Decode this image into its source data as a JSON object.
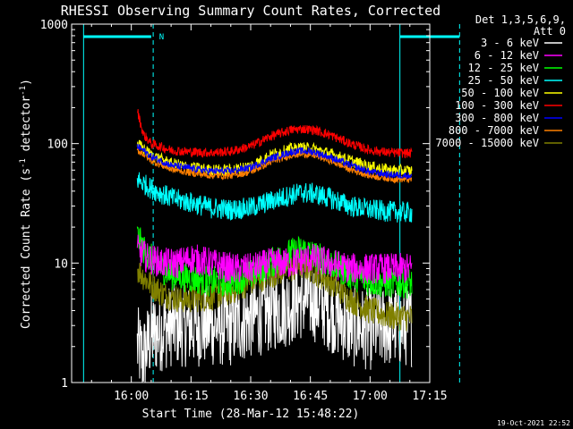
{
  "chart_data": {
    "type": "line",
    "title": "RHESSI Observing Summary Count Rates, Corrected",
    "xlabel": "Start Time (28-Mar-12 15:48:22)",
    "ylabel_main": "Corrected Count Rate (s",
    "ylabel_sup1": "-1",
    "ylabel_mid": " detector",
    "ylabel_sup2": "-1",
    "ylabel_end": ")",
    "yscale": "log",
    "ylim": [
      1,
      1000
    ],
    "xlim_minutes": [
      -15,
      75
    ],
    "x_origin": "16:00",
    "x_ticks": [
      {
        "minutes": 0,
        "label": "16:00"
      },
      {
        "minutes": 15,
        "label": "16:15"
      },
      {
        "minutes": 30,
        "label": "16:30"
      },
      {
        "minutes": 45,
        "label": "16:45"
      },
      {
        "minutes": 60,
        "label": "17:00"
      },
      {
        "minutes": 75,
        "label": "17:15"
      }
    ],
    "y_ticks": [
      {
        "value": 1,
        "label": "1"
      },
      {
        "value": 10,
        "label": "10"
      },
      {
        "value": 100,
        "label": "100"
      },
      {
        "value": 1000,
        "label": "1000"
      }
    ],
    "legend_header": [
      "Det 1,3,5,6,9,",
      "Att 0"
    ],
    "legend_placement": "right",
    "markers": {
      "night_solid": [
        -12,
        67.5
      ],
      "night_dashed": [
        5.5,
        82.5
      ],
      "flag_color": "#00ffff",
      "flag_solid_segments": [
        [
          -12,
          5
        ],
        [
          67.5,
          82.5
        ]
      ],
      "flag_label": "N",
      "flag_label_minutes": 7
    },
    "data_start_minutes": 1.5,
    "data_end_minutes": 70.5,
    "series": [
      {
        "name": "3 - 6 keV",
        "color": "#ffffff",
        "points": [
          [
            1.5,
            2
          ],
          [
            3,
            1.6
          ],
          [
            5,
            2.5
          ],
          [
            10,
            3
          ],
          [
            15,
            3
          ],
          [
            20,
            3
          ],
          [
            25,
            3
          ],
          [
            30,
            3.5
          ],
          [
            35,
            4
          ],
          [
            40,
            4.5
          ],
          [
            42,
            5
          ],
          [
            45,
            5
          ],
          [
            48,
            4.5
          ],
          [
            50,
            4
          ],
          [
            55,
            3
          ],
          [
            60,
            2.8
          ],
          [
            65,
            3
          ],
          [
            70,
            3
          ]
        ]
      },
      {
        "name": "6 - 12 keV",
        "color": "#ff00ff",
        "points": [
          [
            1.5,
            13
          ],
          [
            4,
            11
          ],
          [
            8,
            10
          ],
          [
            12,
            10
          ],
          [
            15,
            11
          ],
          [
            20,
            10
          ],
          [
            25,
            9
          ],
          [
            30,
            9
          ],
          [
            35,
            10
          ],
          [
            40,
            10
          ],
          [
            45,
            11
          ],
          [
            50,
            10
          ],
          [
            55,
            9
          ],
          [
            60,
            9
          ],
          [
            65,
            9
          ],
          [
            70,
            9
          ]
        ]
      },
      {
        "name": "12 - 25 keV",
        "color": "#00ff00",
        "points": [
          [
            1.5,
            17
          ],
          [
            3,
            13
          ],
          [
            6,
            10
          ],
          [
            10,
            8
          ],
          [
            15,
            7.5
          ],
          [
            20,
            7
          ],
          [
            25,
            7
          ],
          [
            30,
            8
          ],
          [
            35,
            10
          ],
          [
            40,
            12
          ],
          [
            43,
            13
          ],
          [
            45,
            12
          ],
          [
            50,
            10
          ],
          [
            55,
            8
          ],
          [
            60,
            7
          ],
          [
            65,
            6.8
          ],
          [
            70,
            6.8
          ]
        ]
      },
      {
        "name": "25 - 50 keV",
        "color": "#00ffff",
        "points": [
          [
            1.5,
            50
          ],
          [
            5,
            42
          ],
          [
            10,
            35
          ],
          [
            15,
            32
          ],
          [
            20,
            29
          ],
          [
            25,
            28
          ],
          [
            30,
            29
          ],
          [
            35,
            33
          ],
          [
            40,
            37
          ],
          [
            43,
            39
          ],
          [
            46,
            38
          ],
          [
            50,
            35
          ],
          [
            55,
            30
          ],
          [
            60,
            28
          ],
          [
            65,
            27
          ],
          [
            70,
            26.5
          ]
        ]
      },
      {
        "name": "50 - 100 keV",
        "color": "#ffff00",
        "points": [
          [
            1.5,
            100
          ],
          [
            5,
            80
          ],
          [
            10,
            68
          ],
          [
            15,
            63
          ],
          [
            20,
            60
          ],
          [
            25,
            60
          ],
          [
            30,
            65
          ],
          [
            35,
            80
          ],
          [
            40,
            90
          ],
          [
            43,
            92
          ],
          [
            46,
            90
          ],
          [
            50,
            82
          ],
          [
            55,
            72
          ],
          [
            60,
            64
          ],
          [
            65,
            60
          ],
          [
            70,
            59
          ]
        ]
      },
      {
        "name": "100 - 300 keV",
        "color": "#ff0000",
        "points": [
          [
            1.5,
            190
          ],
          [
            3,
            120
          ],
          [
            5,
            100
          ],
          [
            10,
            88
          ],
          [
            15,
            85
          ],
          [
            20,
            84
          ],
          [
            25,
            86
          ],
          [
            30,
            95
          ],
          [
            35,
            115
          ],
          [
            40,
            130
          ],
          [
            43,
            133
          ],
          [
            46,
            130
          ],
          [
            50,
            118
          ],
          [
            55,
            100
          ],
          [
            60,
            88
          ],
          [
            65,
            84
          ],
          [
            70,
            83
          ]
        ]
      },
      {
        "name": "300 - 800 keV",
        "color": "#0000ff",
        "points": [
          [
            1.5,
            95
          ],
          [
            3,
            88
          ],
          [
            5,
            78
          ],
          [
            10,
            66
          ],
          [
            15,
            62
          ],
          [
            20,
            59
          ],
          [
            25,
            59
          ],
          [
            30,
            63
          ],
          [
            35,
            75
          ],
          [
            40,
            85
          ],
          [
            43,
            87
          ],
          [
            46,
            85
          ],
          [
            50,
            77
          ],
          [
            55,
            66
          ],
          [
            60,
            58
          ],
          [
            65,
            55
          ],
          [
            70,
            54
          ]
        ]
      },
      {
        "name": "800 - 7000 keV",
        "color": "#ff8000",
        "points": [
          [
            1.5,
            88
          ],
          [
            3,
            82
          ],
          [
            5,
            72
          ],
          [
            10,
            61
          ],
          [
            15,
            57
          ],
          [
            20,
            54
          ],
          [
            25,
            54
          ],
          [
            30,
            58
          ],
          [
            35,
            70
          ],
          [
            40,
            80
          ],
          [
            43,
            82
          ],
          [
            46,
            80
          ],
          [
            50,
            72
          ],
          [
            55,
            61
          ],
          [
            60,
            54
          ],
          [
            65,
            51
          ],
          [
            70,
            50
          ]
        ]
      },
      {
        "name": "7000 - 15000 keV",
        "color": "#808000",
        "points": [
          [
            1.5,
            9
          ],
          [
            4,
            7
          ],
          [
            8,
            5.5
          ],
          [
            12,
            5
          ],
          [
            15,
            5
          ],
          [
            20,
            5.2
          ],
          [
            25,
            5.8
          ],
          [
            30,
            7
          ],
          [
            35,
            8
          ],
          [
            40,
            9
          ],
          [
            43,
            9.5
          ],
          [
            45,
            9
          ],
          [
            50,
            7
          ],
          [
            55,
            5
          ],
          [
            60,
            4
          ],
          [
            65,
            3.6
          ],
          [
            70,
            3.5
          ]
        ]
      }
    ],
    "timestamp": "19-Oct-2021 22:52"
  }
}
